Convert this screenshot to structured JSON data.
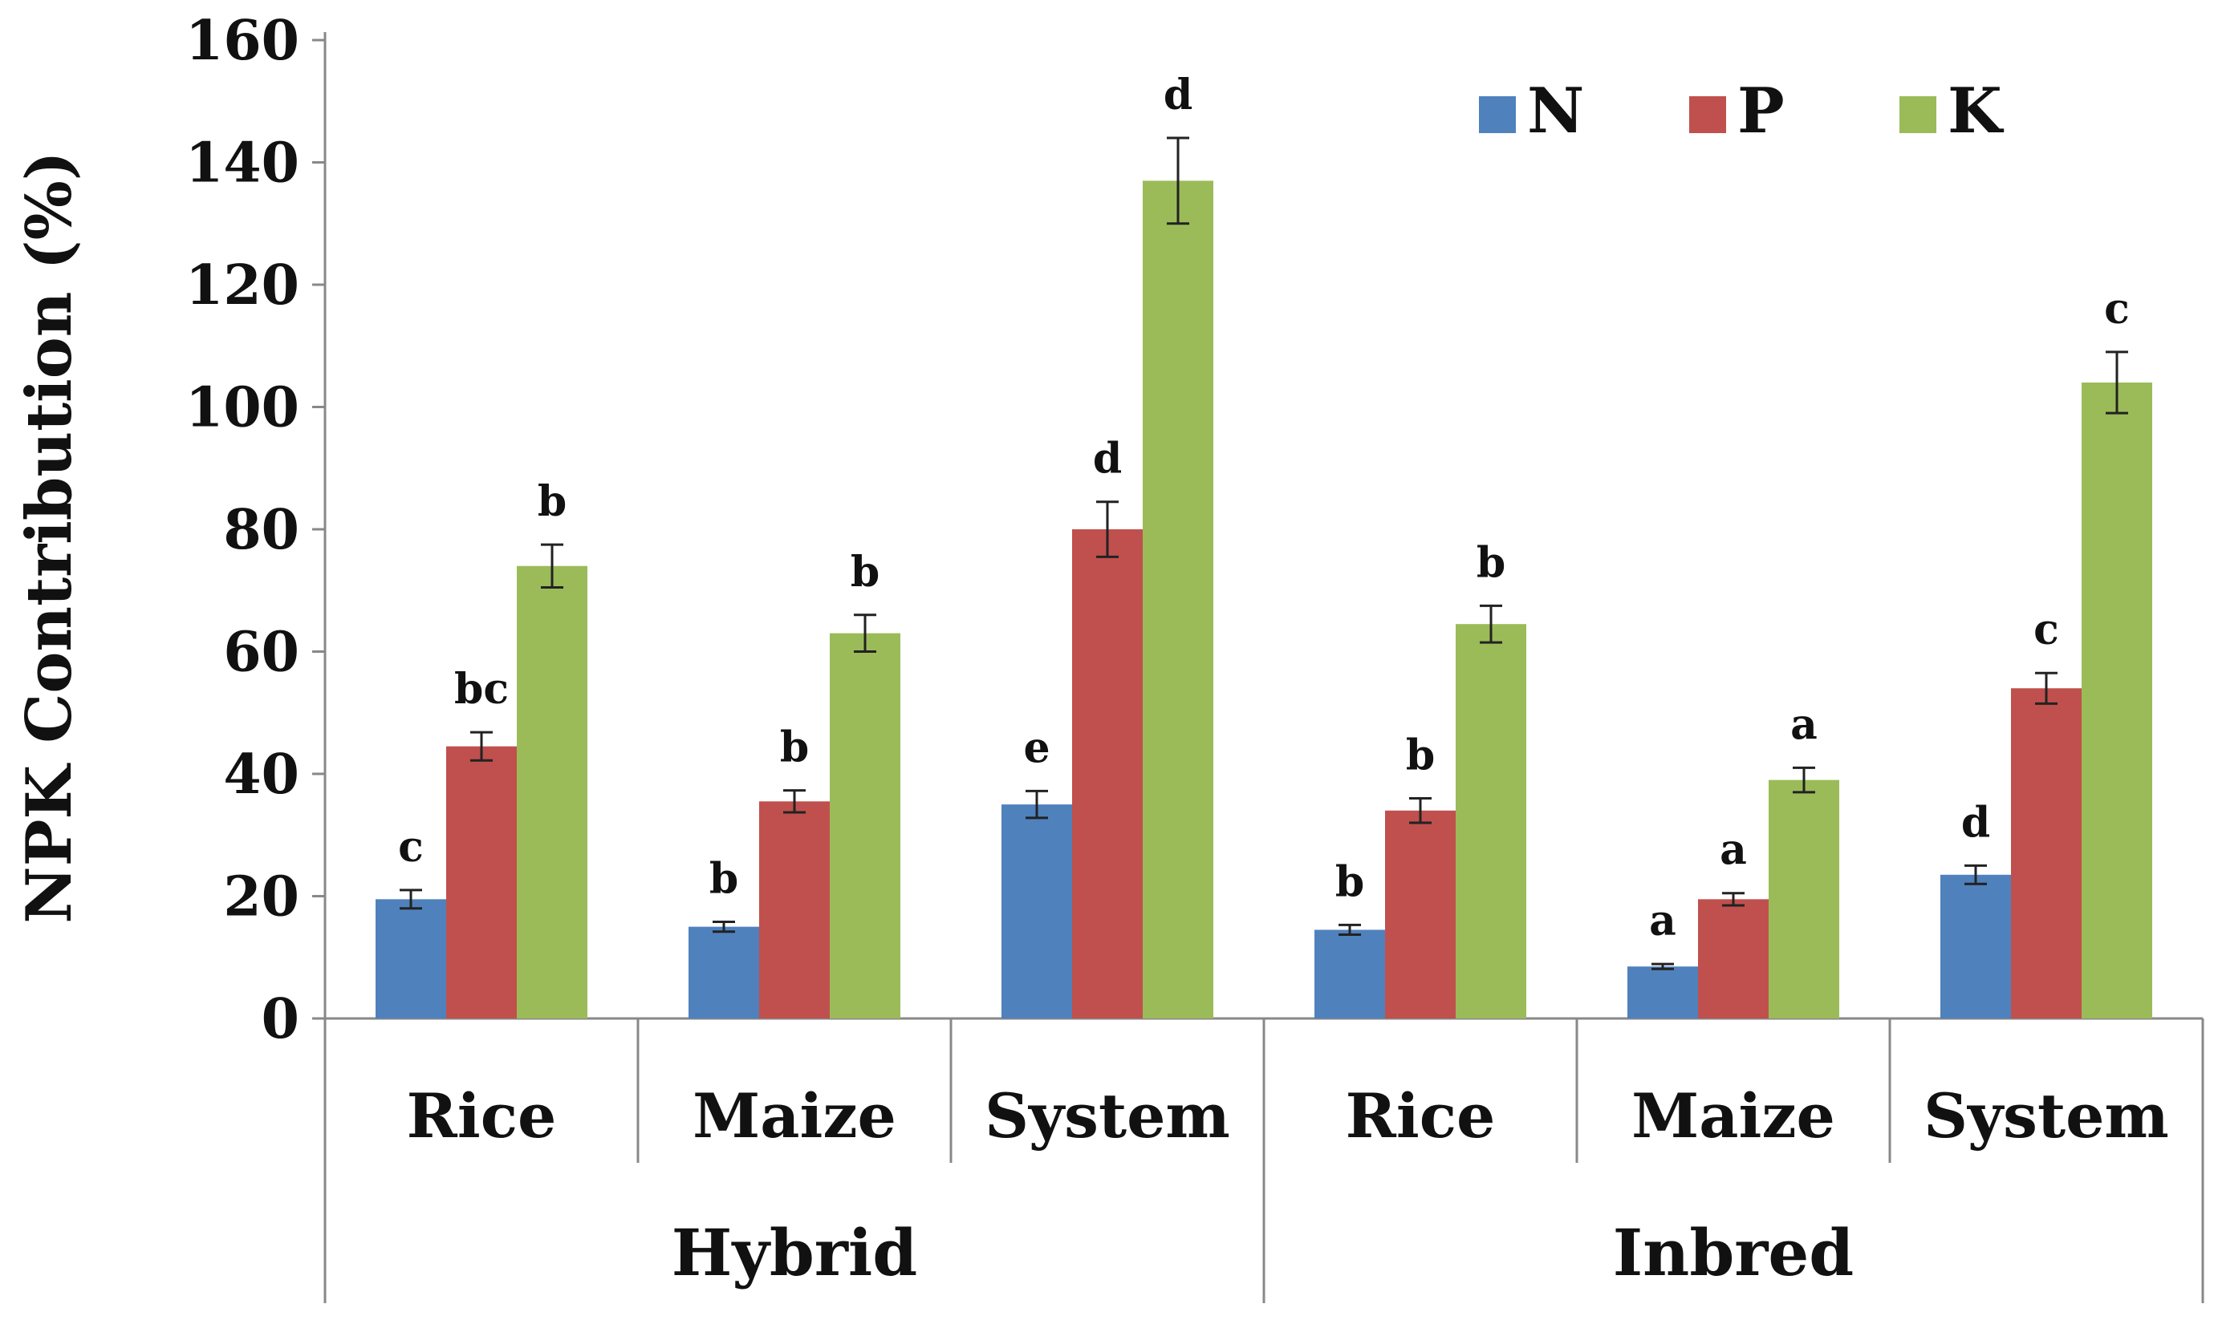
{
  "chart_data": {
    "type": "bar",
    "ylabel": "NPK Contribution (%)",
    "ylim": [
      0,
      160
    ],
    "yticks": [
      0,
      20,
      40,
      60,
      80,
      100,
      120,
      140,
      160
    ],
    "groups": [
      {
        "label": "Hybrid",
        "categories": [
          "Rice",
          "Maize",
          "System"
        ]
      },
      {
        "label": "Inbred",
        "categories": [
          "Rice",
          "Maize",
          "System"
        ]
      }
    ],
    "categories": [
      "Rice",
      "Maize",
      "System",
      "Rice",
      "Maize",
      "System"
    ],
    "series": [
      {
        "name": "N",
        "color": "#4f81bd",
        "values": [
          19.5,
          15,
          35,
          14.5,
          8.5,
          23.5
        ],
        "errors": [
          1.5,
          0.8,
          2.2,
          0.8,
          0.4,
          1.5
        ],
        "letters": [
          "c",
          "b",
          "e",
          "b",
          "a",
          "d"
        ]
      },
      {
        "name": "P",
        "color": "#c0504d",
        "values": [
          44.5,
          35.5,
          80,
          34,
          19.5,
          54
        ],
        "errors": [
          2.3,
          1.8,
          4.5,
          2,
          1,
          2.5
        ],
        "letters": [
          "bc",
          "b",
          "d",
          "b",
          "a",
          "c"
        ]
      },
      {
        "name": "K",
        "color": "#9bbb59",
        "values": [
          74,
          63,
          137,
          64.5,
          39,
          104
        ],
        "errors": [
          3.5,
          3,
          7,
          3,
          2,
          5
        ],
        "letters": [
          "b",
          "b",
          "d",
          "b",
          "a",
          "c"
        ]
      }
    ],
    "legend": {
      "position": "top-right",
      "entries": [
        "N",
        "P",
        "K"
      ]
    }
  }
}
